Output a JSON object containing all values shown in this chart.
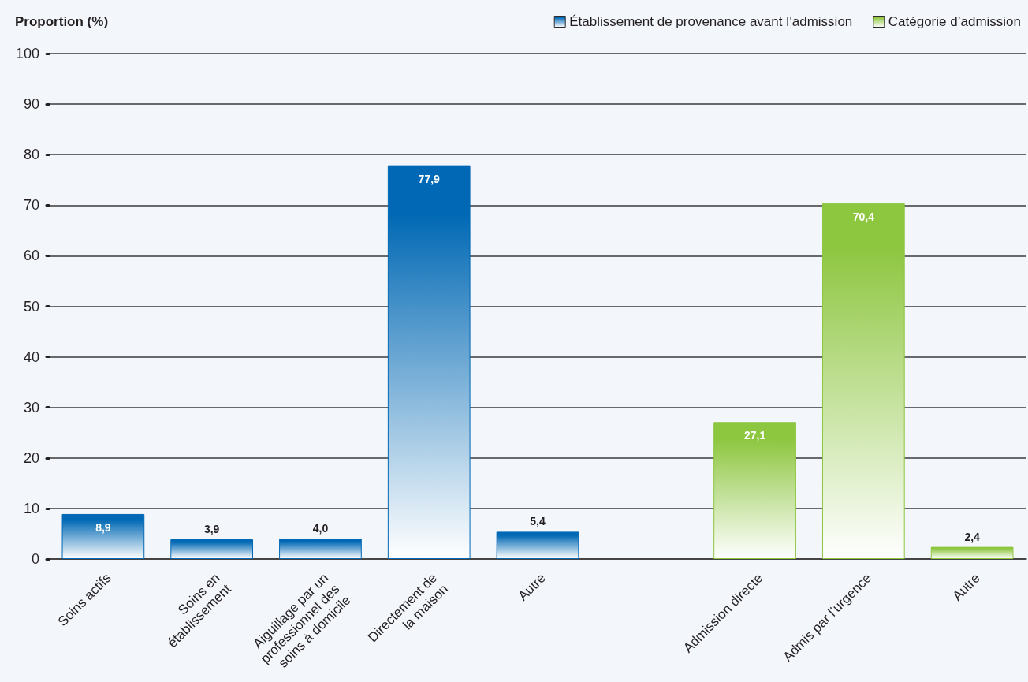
{
  "chart_data": {
    "type": "bar",
    "ylabel": "Proportion (%)",
    "categories": [
      "Soins actifs",
      "Soins en\nétablissement",
      "Aiguillage par un\nprofessionnel des\nsoins à domicile",
      "Directement de\nla maison",
      "Autre",
      null,
      "Admission directe",
      "Admis par l’urgence",
      "Autre"
    ],
    "series": [
      {
        "name": "Établissement de provenance avant l’admission",
        "color": "#0068b4",
        "values": [
          8.9,
          3.9,
          4.0,
          77.9,
          5.4,
          null,
          null,
          null,
          null
        ],
        "value_labels": [
          "8,9",
          "3,9",
          "4,0",
          "77,9",
          "5,4",
          null,
          null,
          null,
          null
        ]
      },
      {
        "name": "Catégorie d’admission",
        "color": "#8dc63f",
        "values": [
          null,
          null,
          null,
          null,
          null,
          null,
          27.1,
          70.4,
          2.4
        ],
        "value_labels": [
          null,
          null,
          null,
          null,
          null,
          null,
          "27,1",
          "70,4",
          "2,4"
        ]
      }
    ],
    "ylim": [
      0,
      100
    ],
    "yticks": [
      0,
      10,
      20,
      30,
      40,
      50,
      60,
      70,
      80,
      90,
      100
    ],
    "grid": "y",
    "legend": "top right"
  }
}
